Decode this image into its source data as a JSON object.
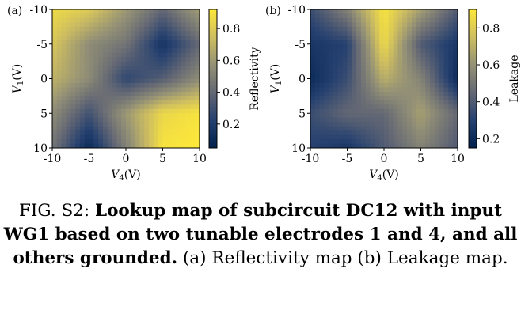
{
  "chart_data": [
    {
      "type": "heatmap",
      "panel_label": "(a)",
      "xlabel": "V4(V)",
      "ylabel": "V1(V)",
      "colorbar_label": "Reflectivity",
      "x_ticks": [
        "-10",
        "-5",
        "0",
        "5",
        "10"
      ],
      "y_ticks": [
        "-10",
        "-5",
        "0",
        "5",
        "10"
      ],
      "colorbar_ticks": [
        "0.2",
        "0.4",
        "0.6",
        "0.8"
      ],
      "xlim": [
        -10,
        10
      ],
      "ylim": [
        -10,
        10
      ],
      "y_inverted": true,
      "zlim": [
        0.05,
        0.92
      ],
      "x": [
        -10,
        -5,
        0,
        5,
        10
      ],
      "y": [
        -10,
        -5,
        0,
        5,
        10
      ],
      "z": [
        [
          0.86,
          0.8,
          0.6,
          0.4,
          0.62
        ],
        [
          0.78,
          0.55,
          0.45,
          0.15,
          0.4
        ],
        [
          0.7,
          0.55,
          0.25,
          0.35,
          0.55
        ],
        [
          0.55,
          0.3,
          0.6,
          0.85,
          0.9
        ],
        [
          0.45,
          0.1,
          0.5,
          0.9,
          0.92
        ]
      ]
    },
    {
      "type": "heatmap",
      "panel_label": "(b)",
      "xlabel": "V4(V)",
      "ylabel": "V1(V)",
      "colorbar_label": "Leakage",
      "x_ticks": [
        "-10",
        "-5",
        "0",
        "5",
        "10"
      ],
      "y_ticks": [
        "-10",
        "-5",
        "0",
        "5",
        "10"
      ],
      "colorbar_ticks": [
        "0.2",
        "0.4",
        "0.6",
        "0.8"
      ],
      "xlim": [
        -10,
        10
      ],
      "ylim": [
        -10,
        10
      ],
      "y_inverted": true,
      "zlim": [
        0.15,
        0.9
      ],
      "x": [
        -10,
        -5,
        0,
        5,
        10
      ],
      "y": [
        -10,
        -5,
        0,
        5,
        10
      ],
      "z": [
        [
          0.35,
          0.55,
          0.88,
          0.65,
          0.4
        ],
        [
          0.25,
          0.3,
          0.85,
          0.4,
          0.25
        ],
        [
          0.2,
          0.35,
          0.7,
          0.55,
          0.2
        ],
        [
          0.35,
          0.45,
          0.45,
          0.65,
          0.45
        ],
        [
          0.3,
          0.25,
          0.4,
          0.55,
          0.4
        ]
      ]
    }
  ],
  "caption": {
    "lead": "FIG. S2: ",
    "bold": "Lookup map of subcircuit DC12 with input WG1 based on two tunable electrodes 1 and 4, and all others grounded.",
    "rest": " (a) Reflectivity map (b) Leakage map."
  }
}
